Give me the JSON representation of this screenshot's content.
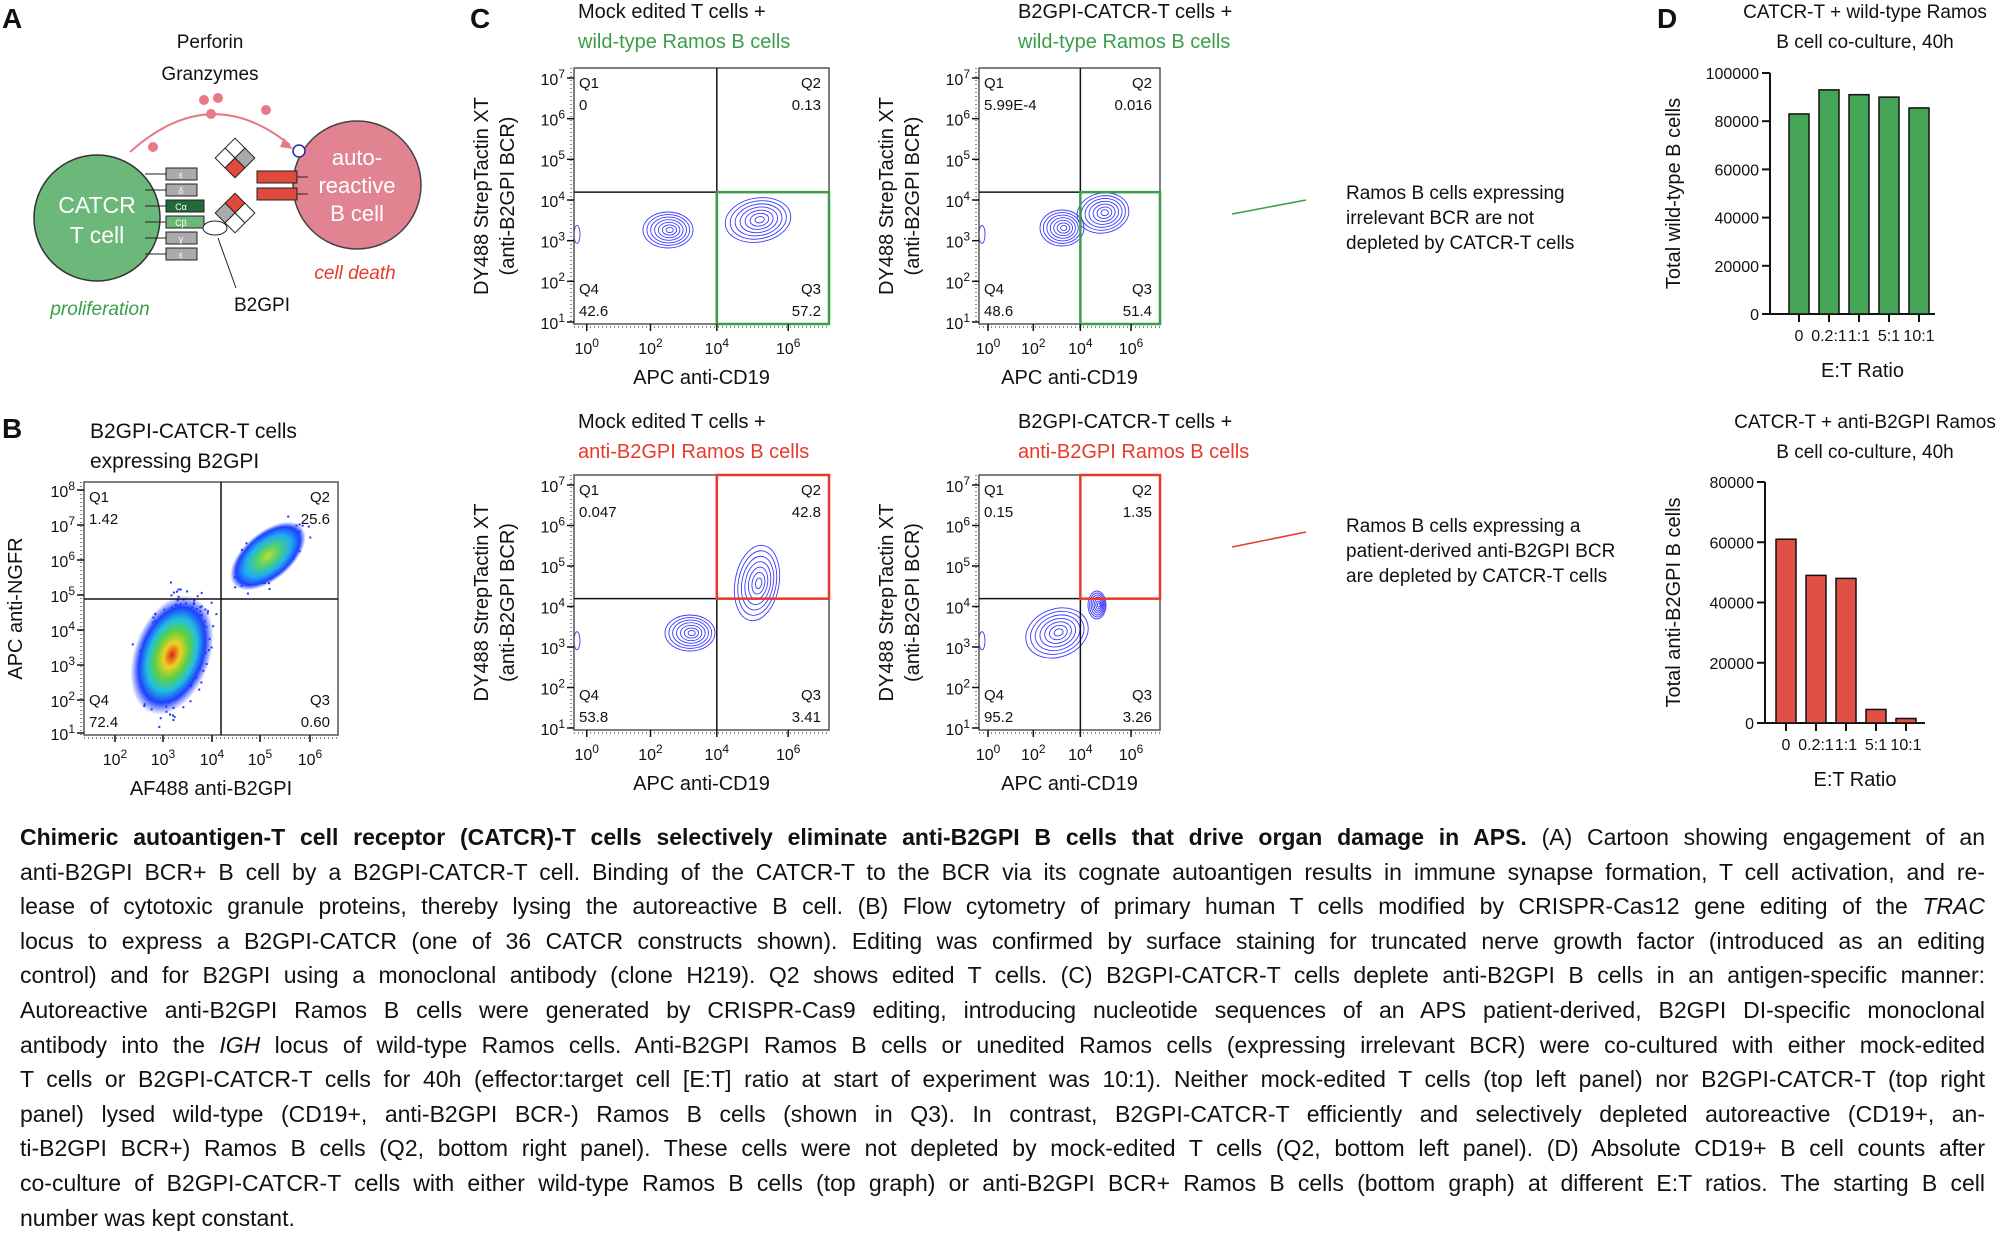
{
  "colors": {
    "green": "#3a9e48",
    "red": "#e8392b",
    "contour": "#3a3aff",
    "green_bar": "#45a456",
    "red_bar": "#e05044"
  },
  "panel_a": {
    "letter": "A",
    "perforin": "Perforin",
    "granzymes": "Granzymes",
    "t_cell": [
      "CATCR",
      "T cell"
    ],
    "b_cell": [
      "auto-",
      "reactive",
      "B cell"
    ],
    "proliferation": "proliferation",
    "cell_death": "cell death",
    "b2gpi": "B2GPI",
    "receptor_labels": [
      "ε",
      "δ",
      "Cα",
      "Cβ",
      "γ",
      "ε"
    ]
  },
  "panel_b": {
    "letter": "B",
    "title": [
      "B2GPI-CATCR-T cells",
      "expressing B2GPI"
    ],
    "ylabel": "APC anti-NGFR",
    "xlabel": "AF488 anti-B2GPI",
    "y_tick_exponents": [
      "8",
      "7",
      "6",
      "5",
      "4",
      "3",
      "2",
      "1"
    ],
    "x_tick_exponents": [
      "2",
      "3",
      "4",
      "5",
      "6"
    ],
    "tick_base": "10",
    "quadrants": {
      "Q1": "1.42",
      "Q2": "25.6",
      "Q3": "0.60",
      "Q4": "72.4"
    }
  },
  "panel_c": {
    "letter": "C",
    "ylabel": [
      "DY488 StrepTactin XT",
      "(anti-B2GPI BCR)"
    ],
    "xlabel": "APC anti-CD19",
    "y_tick_exponents": [
      "7",
      "6",
      "5",
      "4",
      "3",
      "2",
      "1"
    ],
    "x_tick_exponents": [
      "0",
      "2",
      "4",
      "6"
    ],
    "tick_base": "10",
    "plots": [
      {
        "title1": "Mock edited T cells +",
        "title2": "wild-type Ramos B cells",
        "title2_color": "green",
        "highlight": "Q3",
        "quadrants": {
          "Q1": "0",
          "Q2": "0.13",
          "Q3": "57.2",
          "Q4": "42.6"
        }
      },
      {
        "title1": "B2GPI-CATCR-T cells +",
        "title2": "wild-type Ramos B cells",
        "title2_color": "green",
        "highlight": "Q3",
        "quadrants": {
          "Q1": "5.99E-4",
          "Q2": "0.016",
          "Q3": "51.4",
          "Q4": "48.6"
        }
      },
      {
        "title1": "Mock edited T cells +",
        "title2": "anti-B2GPI Ramos B cells",
        "title2_color": "red",
        "highlight": "Q2",
        "quadrants": {
          "Q1": "0.047",
          "Q2": "42.8",
          "Q3": "3.41",
          "Q4": "53.8"
        }
      },
      {
        "title1": "B2GPI-CATCR-T cells +",
        "title2": "anti-B2GPI Ramos B cells",
        "title2_color": "red",
        "highlight": "Q2",
        "quadrants": {
          "Q1": "0.15",
          "Q2": "1.35",
          "Q3": "3.26",
          "Q4": "95.2"
        }
      }
    ],
    "annotation_top": [
      "Ramos B cells expressing",
      "irrelevant BCR are not",
      "depleted by CATCR-T cells"
    ],
    "annotation_bottom": [
      "Ramos B cells expressing a",
      "patient-derived anti-B2GPI BCR",
      "are depleted by CATCR-T cells"
    ]
  },
  "panel_d": {
    "letter": "D"
  },
  "chart_data": [
    {
      "type": "bar",
      "title": [
        "CATCR-T + wild-type Ramos",
        "B cell co-culture, 40h"
      ],
      "xlabel": "E:T Ratio",
      "ylabel": "Total wild-type B cells",
      "categories": [
        "0",
        "0.2:1",
        "1:1",
        "5:1",
        "10:1"
      ],
      "values": [
        83000,
        93000,
        91000,
        90000,
        85500
      ],
      "ylim": [
        0,
        100000
      ],
      "yticks": [
        "0",
        "20000",
        "40000",
        "60000",
        "80000",
        "100000"
      ],
      "color": "green_bar",
      "grid": false
    },
    {
      "type": "bar",
      "title": [
        "CATCR-T + anti-B2GPI Ramos",
        "B cell co-culture, 40h"
      ],
      "xlabel": "E:T Ratio",
      "ylabel": "Total anti-B2GPI B cells",
      "categories": [
        "0",
        "0.2:1",
        "1:1",
        "5:1",
        "10:1"
      ],
      "values": [
        61000,
        49000,
        48000,
        4500,
        1500
      ],
      "ylim": [
        0,
        80000
      ],
      "yticks": [
        "0",
        "20000",
        "40000",
        "60000",
        "80000"
      ],
      "color": "red_bar",
      "grid": false
    }
  ],
  "caption": {
    "lines": [
      [
        {
          "t": "Chimeric autoantigen-T cell receptor (CATCR)-T cells selectively eliminate anti-B2GPI B cells that drive organ damage in APS.",
          "s": "b"
        },
        {
          "t": " (A) Cartoon showing engagement of an"
        }
      ],
      [
        {
          "t": "anti-B2GPI BCR+ B cell by a B2GPI-CATCR-T cell. Binding of the CATCR-T to the BCR via its cognate autoantigen results in immune synapse formation, T cell activation, and re-"
        }
      ],
      [
        {
          "t": "lease of cytotoxic granule proteins, thereby lysing the autoreactive B cell. (B) Flow cytometry of primary human T cells modified by CRISPR-Cas12 gene editing of the "
        },
        {
          "t": "TRAC",
          "s": "i"
        }
      ],
      [
        {
          "t": "locus to express a B2GPI-CATCR (one of 36 CATCR constructs shown). Editing was confirmed by surface staining for truncated nerve growth factor (introduced as an editing"
        }
      ],
      [
        {
          "t": "control) and for B2GPI using a monoclonal antibody (clone H219). Q2 shows edited T cells. (C) B2GPI-CATCR-T cells deplete anti-B2GPI B cells in an antigen-specific manner:"
        }
      ],
      [
        {
          "t": "Autoreactive anti-B2GPI Ramos B cells were generated by CRISPR-Cas9 editing, introducing nucleotide sequences of an APS patient-derived, B2GPI DI-specific monoclonal"
        }
      ],
      [
        {
          "t": "antibody into the "
        },
        {
          "t": "IGH",
          "s": "i"
        },
        {
          "t": " locus of wild-type Ramos cells. Anti-B2GPI Ramos B cells or unedited Ramos cells (expressing irrelevant BCR) were co-cultured with either mock-edited"
        }
      ],
      [
        {
          "t": "T cells or B2GPI-CATCR-T cells for 40h (effector:target cell [E:T] ratio at start of experiment was 10:1). Neither mock-edited T cells (top left panel) nor B2GPI-CATCR-T (top right"
        }
      ],
      [
        {
          "t": "panel) lysed wild-type (CD19+, anti-B2GPI BCR-) Ramos B cells (shown in Q3). In contrast, B2GPI-CATCR-T efficiently and selectively depleted autoreactive (CD19+, an-"
        }
      ],
      [
        {
          "t": "ti-B2GPI BCR+) Ramos B cells (Q2, bottom right panel). These cells were not depleted by mock-edited T cells (Q2, bottom left panel). (D) Absolute CD19+ B cell counts after"
        }
      ],
      [
        {
          "t": "co-culture of B2GPI-CATCR-T cells with either wild-type Ramos B cells (top graph) or anti-B2GPI BCR+ Ramos B cells (bottom graph) at different E:T ratios. The starting B cell"
        }
      ],
      [
        {
          "t": "number was kept constant."
        }
      ]
    ]
  }
}
